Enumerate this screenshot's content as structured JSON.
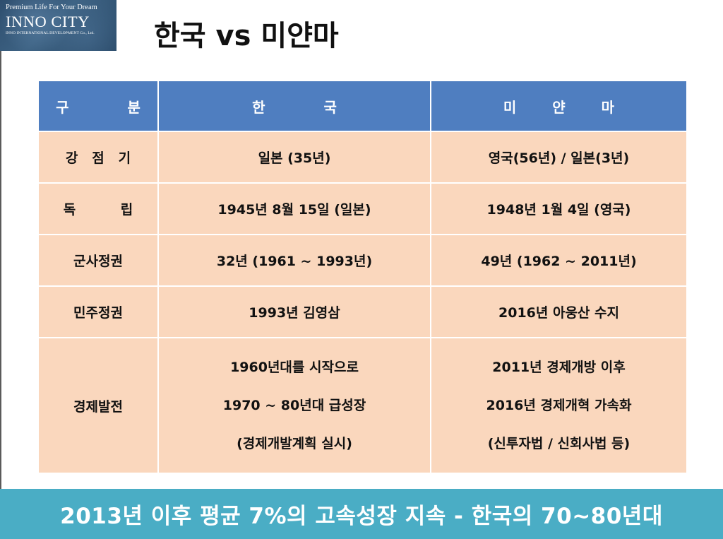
{
  "logo": {
    "tagline": "Premium Life For Your Dream",
    "brand": "INNO CITY",
    "subtitle": "INNO INTERNATIONAL DEVELOPMENT Co., Ltd."
  },
  "title": "한국 vs 미얀마",
  "table": {
    "headers": [
      "구 분",
      "한 국",
      "미 얀 마"
    ],
    "rows": [
      {
        "label": "강 점 기",
        "korea": "일본 (35년)",
        "myanmar": "영국(56년) / 일본(3년)"
      },
      {
        "label": "독 립",
        "korea": "1945년 8월 15일 (일본)",
        "myanmar": "1948년 1월 4일 (영국)"
      },
      {
        "label": "군사정권",
        "korea": "32년 (1961 ~ 1993년)",
        "myanmar": "49년 (1962 ~ 2011년)"
      },
      {
        "label": "민주정권",
        "korea": "1993년 김영삼",
        "myanmar": "2016년 아웅산 수지"
      },
      {
        "label": "경제발전",
        "korea": [
          "1960년대를 시작으로",
          "1970 ~ 80년대 급성장",
          "(경제개발계획 실시)"
        ],
        "myanmar": [
          "2011년 경제개방 이후",
          "2016년 경제개혁 가속화",
          "(신투자법 / 신회사법 등)"
        ]
      }
    ]
  },
  "banner": "2013년 이후 평균 7%의 고속성장 지속 - 한국의 70~80년대",
  "colors": {
    "header_bg": "#4f7ec0",
    "cell_bg": "#fad7bd",
    "banner_bg": "#4aadc5",
    "logo_bg": "#2e4e6e"
  }
}
